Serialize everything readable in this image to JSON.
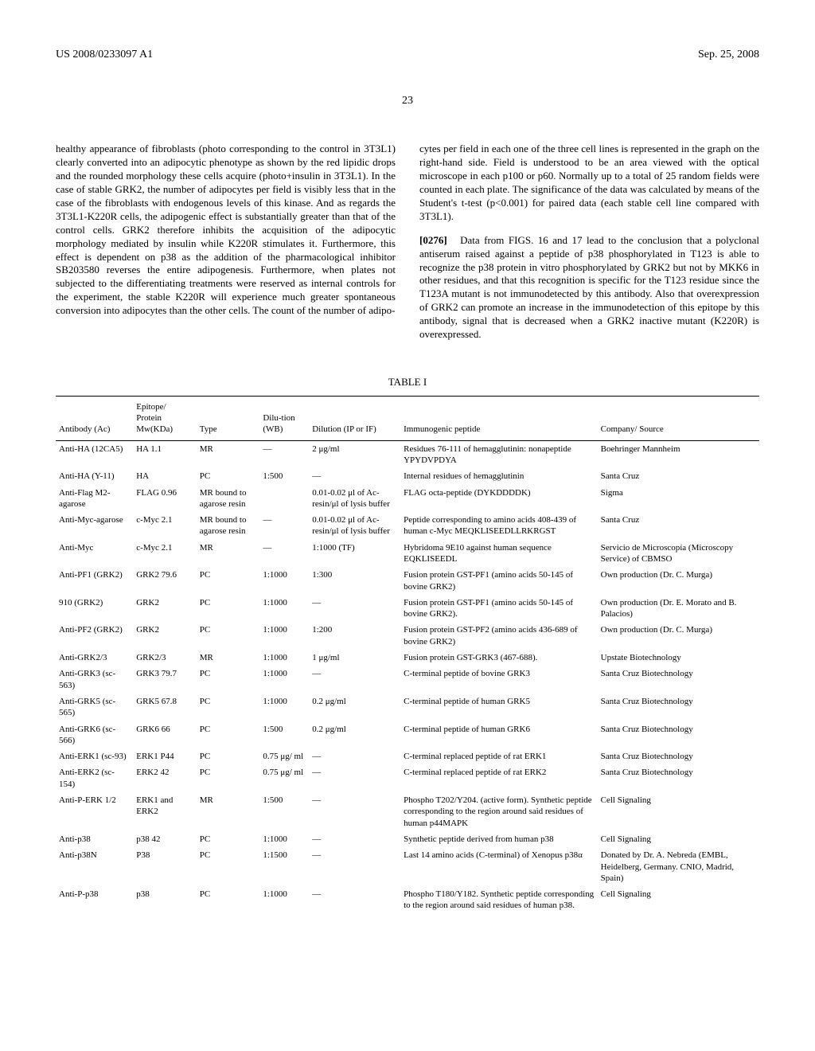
{
  "header": {
    "left": "US 2008/0233097 A1",
    "right": "Sep. 25, 2008"
  },
  "page_num": "23",
  "left_col": "healthy appearance of fibroblasts (photo corresponding to the control in 3T3L1) clearly converted into an adipocytic phenotype as shown by the red lipidic drops and the rounded morphology these cells acquire (photo+insulin in 3T3L1). In the case of stable GRK2, the number of adipocytes per field is visibly less that in the case of the fibroblasts with endogenous levels of this kinase. And as regards the 3T3L1-K220R cells, the adipogenic effect is substantially greater than that of the control cells. GRK2 therefore inhibits the acquisition of the adipocytic morphology mediated by insulin while K220R stimulates it. Furthermore, this effect is dependent on p38 as the addition of the pharmacological inhibitor SB203580 reverses the entire adipogenesis. Furthermore, when plates not subjected to the differentiating treatments were reserved as internal controls for the experiment, the stable K220R will experience much greater spontaneous conversion into adipocytes than the other cells. The count of the number of adipo-",
  "right_col_p1": "cytes per field in each one of the three cell lines is represented in the graph on the right-hand side. Field is understood to be an area viewed with the optical microscope in each p100 or p60. Normally up to a total of 25 random fields were counted in each plate. The significance of the data was calculated by means of the Student's t-test (p<0.001) for paired data (each stable cell line compared with 3T3L1).",
  "right_col_p2_num": "[0276]",
  "right_col_p2": "Data from FIGS. 16 and 17 lead to the conclusion that a polyclonal antiserum raised against a peptide of p38 phosphorylated in T123 is able to recognize the p38 protein in vitro phosphorylated by GRK2 but not by MKK6 in other residues, and that this recognition is specific for the T123 residue since the T123A mutant is not immunodetected by this antibody. Also that overexpression of GRK2 can promote an increase in the immunodetection of this epitope by this antibody, signal that is decreased when a GRK2 inactive mutant (K220R) is overexpressed.",
  "table": {
    "title": "TABLE I",
    "columns": [
      "Antibody (Ac)",
      "Epitope/ Protein Mw(KDa)",
      "Type",
      "Dilu-tion (WB)",
      "Dilution (IP or IF)",
      "Immunogenic peptide",
      "Company/ Source"
    ],
    "rows": [
      [
        "Anti-HA (12CA5)",
        "HA 1.1",
        "MR",
        "—",
        "2 μg/ml",
        "Residues 76-111 of hemagglutinin: nonapeptide YPYDVPDYA",
        "Boehringer Mannheim"
      ],
      [
        "Anti-HA (Y-11)",
        "HA",
        "PC",
        "1:500",
        "—",
        "Internal residues of hemagglutinin",
        "Santa Cruz"
      ],
      [
        "Anti-Flag M2-agarose",
        "FLAG 0.96",
        "MR bound to agarose resin",
        "",
        "0.01-0.02 μl of Ac-resin/μl of lysis buffer",
        "FLAG octa-peptide (DYKDDDDK)",
        "Sigma"
      ],
      [
        "Anti-Myc-agarose",
        "c-Myc 2.1",
        "MR bound to agarose resin",
        "—",
        "0.01-0.02 μl of Ac-resin/μl of lysis buffer",
        "Peptide corresponding to amino acids 408-439 of human c-Myc MEQKLISEEDLLRKRGST",
        "Santa Cruz"
      ],
      [
        "Anti-Myc",
        "c-Myc 2.1",
        "MR",
        "—",
        "1:1000 (TF)",
        "Hybridoma 9E10 against human sequence EQKLISEEDL",
        "Servicio de Microscopía (Microscopy Service) of CBMSO"
      ],
      [
        "Anti-PF1 (GRK2)",
        "GRK2 79.6",
        "PC",
        "1:1000",
        "1:300",
        "Fusion protein GST-PF1 (amino acids 50-145 of bovine GRK2)",
        "Own production (Dr. C. Murga)"
      ],
      [
        "910 (GRK2)",
        "GRK2",
        "PC",
        "1:1000",
        "—",
        "Fusion protein GST-PF1 (amino acids 50-145 of bovine GRK2).",
        "Own production (Dr. E. Morato and B. Palacios)"
      ],
      [
        "Anti-PF2 (GRK2)",
        "GRK2",
        "PC",
        "1:1000",
        "1:200",
        "Fusion protein GST-PF2 (amino acids 436-689 of bovine GRK2)",
        "Own production (Dr. C. Murga)"
      ],
      [
        "Anti-GRK2/3",
        "GRK2/3",
        "MR",
        "1:1000",
        "1 μg/ml",
        "Fusion protein GST-GRK3 (467-688).",
        "Upstate Biotechnology"
      ],
      [
        "Anti-GRK3 (sc-563)",
        "GRK3 79.7",
        "PC",
        "1:1000",
        "—",
        "C-terminal peptide of bovine GRK3",
        "Santa Cruz Biotechnology"
      ],
      [
        "Anti-GRK5 (sc-565)",
        "GRK5 67.8",
        "PC",
        "1:1000",
        "0.2 μg/ml",
        "C-terminal peptide of human GRK5",
        "Santa Cruz Biotechnology"
      ],
      [
        "Anti-GRK6 (sc-566)",
        "GRK6 66",
        "PC",
        "1:500",
        "0.2 μg/ml",
        "C-terminal peptide of human GRK6",
        "Santa Cruz Biotechnology"
      ],
      [
        "Anti-ERK1 (sc-93)",
        "ERK1 P44",
        "PC",
        "0.75 μg/ ml",
        "—",
        "C-terminal replaced peptide of rat ERK1",
        "Santa Cruz Biotechnology"
      ],
      [
        "Anti-ERK2 (sc-154)",
        "ERK2 42",
        "PC",
        "0.75 μg/ ml",
        "—",
        "C-terminal replaced peptide of rat ERK2",
        "Santa Cruz Biotechnology"
      ],
      [
        "Anti-P-ERK 1/2",
        "ERK1 and ERK2",
        "MR",
        "1:500",
        "—",
        "Phospho T202/Y204. (active form). Synthetic peptide corresponding to the region around said residues of human p44MAPK",
        "Cell Signaling"
      ],
      [
        "Anti-p38",
        "p38 42",
        "PC",
        "1:1000",
        "—",
        "Synthetic peptide derived from human p38",
        "Cell Signaling"
      ],
      [
        "Anti-p38N",
        "P38",
        "PC",
        "1:1500",
        "—",
        "Last 14 amino acids (C-terminal) of Xenopus p38α",
        "Donated by Dr. A. Nebreda (EMBL, Heidelberg, Germany. CNIO, Madrid, Spain)"
      ],
      [
        "Anti-P-p38",
        "p38",
        "PC",
        "1:1000",
        "—",
        "Phospho T180/Y182. Synthetic peptide corresponding to the region around said residues of human p38.",
        "Cell Signaling"
      ]
    ]
  }
}
